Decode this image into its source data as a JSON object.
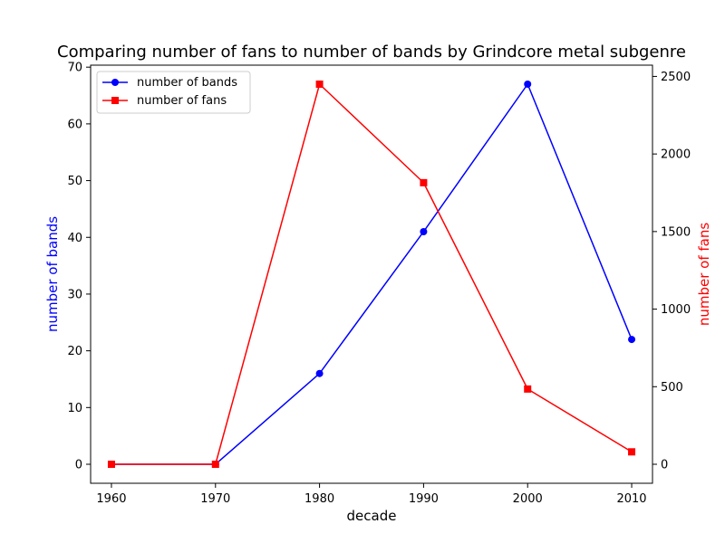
{
  "chart_data": {
    "type": "line",
    "title": "Comparing number of fans to number of bands by Grindcore metal subgenre",
    "xlabel": "decade",
    "x": [
      1960,
      1970,
      1980,
      1990,
      2000,
      2010
    ],
    "xlim": [
      1958,
      2012
    ],
    "y_left": {
      "label": "number of bands",
      "color": "#0000ff",
      "ylim": [
        -3.35,
        70.35
      ],
      "ticks": [
        0,
        10,
        20,
        30,
        40,
        50,
        60,
        70
      ]
    },
    "y_right": {
      "label": "number of fans",
      "color": "#ff0000",
      "ylim": [
        -122.5,
        2572.5
      ],
      "ticks": [
        0,
        500,
        1000,
        1500,
        2000,
        2500
      ]
    },
    "series": [
      {
        "name": "number of bands",
        "axis": "left",
        "color": "#0000ff",
        "marker": "circle",
        "values": [
          0,
          0,
          16,
          41,
          67,
          22
        ]
      },
      {
        "name": "number of fans",
        "axis": "right",
        "color": "#ff0000",
        "marker": "square",
        "values": [
          0,
          0,
          2450,
          1815,
          485,
          80
        ]
      }
    ],
    "legend": "top-left",
    "grid": false
  }
}
